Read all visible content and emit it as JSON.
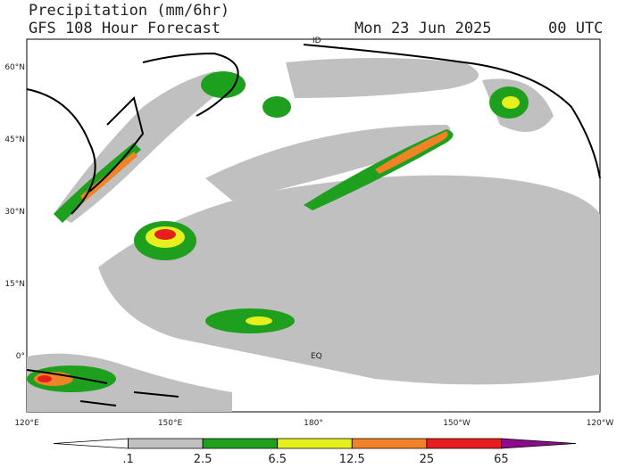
{
  "header": {
    "title": "Precipitation (mm/6hr)",
    "subtitle": "GFS 108 Hour Forecast",
    "date": "Mon 23 Jun 2025",
    "time": "00 UTC"
  },
  "map": {
    "lat_labels": [
      "60°N",
      "45°N",
      "30°N",
      "15°N",
      "0°"
    ],
    "lon_labels": [
      "120°E",
      "150°E",
      "180°",
      "150°W",
      "120°W"
    ],
    "annotations": [
      "ID",
      "EQ"
    ]
  },
  "colorbar": {
    "labels": [
      ".1",
      "2.5",
      "6.5",
      "12.5",
      "25",
      "65"
    ],
    "colors": [
      "#ffffff",
      "#c0c0c0",
      "#1ea01e",
      "#e6f01e",
      "#f08228",
      "#e61e1e",
      "#8c0a8c"
    ]
  }
}
